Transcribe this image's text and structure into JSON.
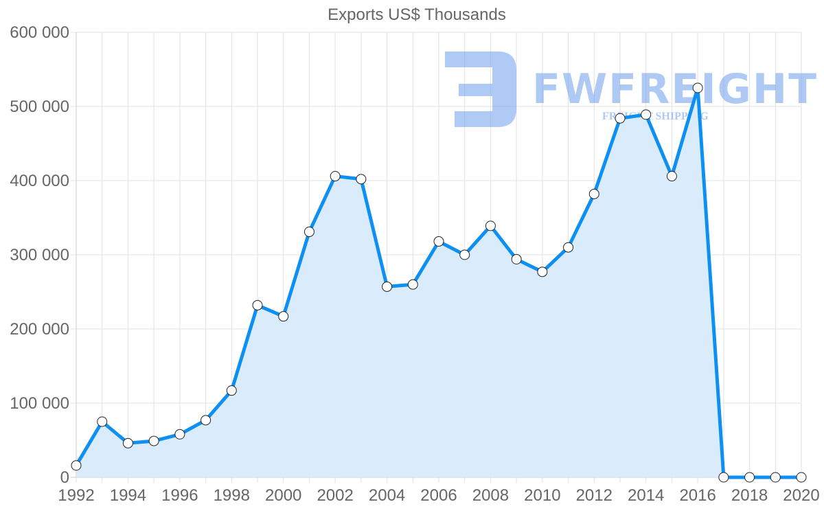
{
  "chart_data": {
    "type": "line",
    "title": "Exports US$ Thousands",
    "xlabel": "",
    "ylabel": "",
    "x": [
      1992,
      1993,
      1994,
      1995,
      1996,
      1997,
      1998,
      1999,
      2000,
      2001,
      2002,
      2003,
      2004,
      2005,
      2006,
      2007,
      2008,
      2009,
      2010,
      2011,
      2012,
      2013,
      2014,
      2015,
      2016,
      2017,
      2018,
      2019,
      2020
    ],
    "series": [
      {
        "name": "Exports US$ Thousands",
        "values": [
          16000,
          75000,
          46000,
          49000,
          58000,
          77000,
          117000,
          232000,
          217000,
          331000,
          406000,
          402000,
          257000,
          260000,
          318000,
          300000,
          339000,
          294000,
          277000,
          310000,
          382000,
          484000,
          489000,
          406000,
          525000,
          0,
          0,
          0,
          0
        ],
        "color": "#0e8ff2",
        "fill": "#d8ebfc",
        "area": true
      }
    ],
    "xticks": [
      "1992",
      "1994",
      "1996",
      "1998",
      "2000",
      "2002",
      "2004",
      "2006",
      "2008",
      "2010",
      "2012",
      "2014",
      "2016",
      "2018",
      "2020"
    ],
    "yticks": [
      "0",
      "100 000",
      "200 000",
      "300 000",
      "400 000",
      "500 000",
      "600 000"
    ],
    "ylim": [
      0,
      600000
    ],
    "xlim": [
      1992,
      2020
    ],
    "grid": true,
    "legend": null
  },
  "watermark": {
    "brand": "FWFREIGHT",
    "tagline": "FREIGHT SHIPPING"
  }
}
